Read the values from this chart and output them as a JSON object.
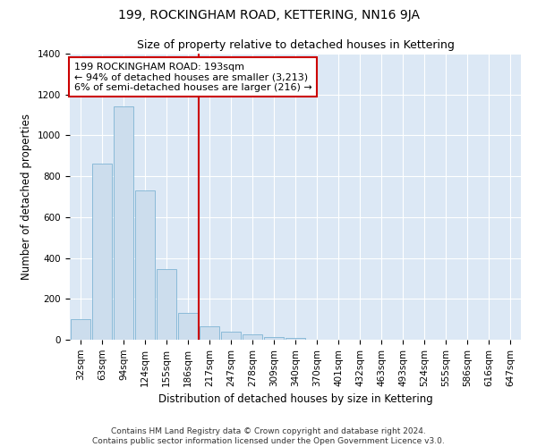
{
  "title": "199, ROCKINGHAM ROAD, KETTERING, NN16 9JA",
  "subtitle": "Size of property relative to detached houses in Kettering",
  "xlabel": "Distribution of detached houses by size in Kettering",
  "ylabel": "Number of detached properties",
  "categories": [
    "32sqm",
    "63sqm",
    "94sqm",
    "124sqm",
    "155sqm",
    "186sqm",
    "217sqm",
    "247sqm",
    "278sqm",
    "309sqm",
    "340sqm",
    "370sqm",
    "401sqm",
    "432sqm",
    "463sqm",
    "493sqm",
    "524sqm",
    "555sqm",
    "586sqm",
    "616sqm",
    "647sqm"
  ],
  "values": [
    100,
    860,
    1140,
    730,
    345,
    130,
    65,
    38,
    25,
    15,
    10,
    0,
    0,
    0,
    0,
    0,
    0,
    0,
    0,
    0,
    0
  ],
  "bar_color": "#ccdded",
  "bar_edge_color": "#7fb4d4",
  "vline_x_index": 5.5,
  "vline_color": "#cc0000",
  "annotation_text": "199 ROCKINGHAM ROAD: 193sqm\n← 94% of detached houses are smaller (3,213)\n6% of semi-detached houses are larger (216) →",
  "annotation_box_color": "#ffffff",
  "annotation_box_edge": "#cc0000",
  "ylim": [
    0,
    1400
  ],
  "yticks": [
    0,
    200,
    400,
    600,
    800,
    1000,
    1200,
    1400
  ],
  "bg_color": "#dce8f5",
  "footer": "Contains HM Land Registry data © Crown copyright and database right 2024.\nContains public sector information licensed under the Open Government Licence v3.0.",
  "title_fontsize": 10,
  "subtitle_fontsize": 9,
  "xlabel_fontsize": 8.5,
  "ylabel_fontsize": 8.5,
  "tick_fontsize": 7.5,
  "annotation_fontsize": 8,
  "footer_fontsize": 6.5
}
